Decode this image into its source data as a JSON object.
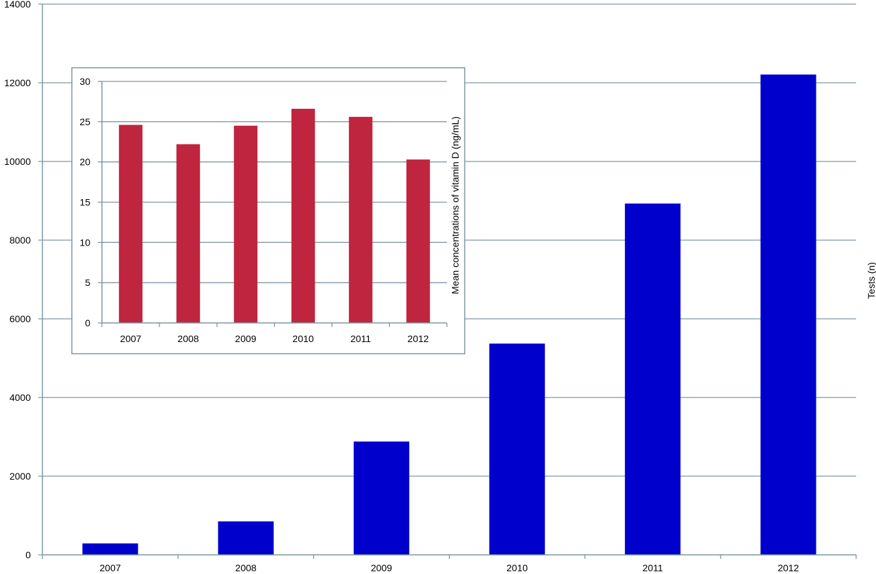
{
  "chart_data": [
    {
      "id": "main",
      "type": "bar",
      "categories": [
        "2007",
        "2008",
        "2009",
        "2010",
        "2011",
        "2012"
      ],
      "values": [
        290,
        850,
        2880,
        5370,
        8930,
        12210
      ],
      "title": "",
      "xlabel": "",
      "ylabel": "Tests (n)",
      "ylim": [
        0,
        14000
      ],
      "yticks": [
        0,
        2000,
        4000,
        6000,
        8000,
        10000,
        12000,
        14000
      ],
      "ytick_labels": [
        "0",
        "2000",
        "4000",
        "6000",
        "8000",
        "10000",
        "12000",
        "14000"
      ],
      "grid": true,
      "bar_color": "#0000cc",
      "grid_color": "#7f96a0"
    },
    {
      "id": "inset",
      "type": "bar",
      "categories": [
        "2007",
        "2008",
        "2009",
        "2010",
        "2011",
        "2012"
      ],
      "values": [
        24.6,
        22.2,
        24.5,
        26.6,
        25.6,
        20.3
      ],
      "title": "",
      "xlabel": "",
      "ylabel": "Mean concentrations of vitamin D (ng/mL)",
      "ylim": [
        0,
        30
      ],
      "yticks": [
        0,
        5,
        10,
        15,
        20,
        25,
        30
      ],
      "ytick_labels": [
        "0",
        "5",
        "10",
        "15",
        "20",
        "25",
        "30"
      ],
      "grid": true,
      "bar_color": "#c0253f",
      "grid_color": "#7f96a0"
    }
  ]
}
